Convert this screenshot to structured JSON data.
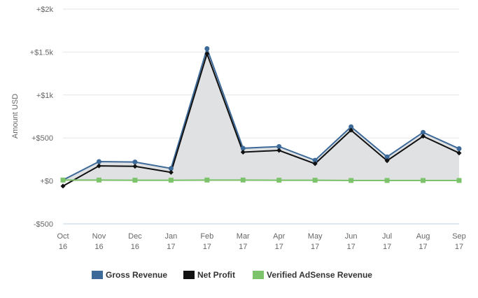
{
  "chart_data": {
    "type": "line",
    "ylabel": "Amount USD",
    "ylim": [
      -500,
      2000
    ],
    "yticks": [
      {
        "value": 2000,
        "label": "+$2k"
      },
      {
        "value": 1500,
        "label": "+$1.5k"
      },
      {
        "value": 1000,
        "label": "+$1k"
      },
      {
        "value": 500,
        "label": "+$500"
      },
      {
        "value": 0,
        "label": "+$0"
      },
      {
        "value": -500,
        "label": "-$500"
      }
    ],
    "categories": [
      {
        "month": "Oct",
        "year": "16"
      },
      {
        "month": "Nov",
        "year": "16"
      },
      {
        "month": "Dec",
        "year": "16"
      },
      {
        "month": "Jan",
        "year": "17"
      },
      {
        "month": "Feb",
        "year": "17"
      },
      {
        "month": "Mar",
        "year": "17"
      },
      {
        "month": "Apr",
        "year": "17"
      },
      {
        "month": "May",
        "year": "17"
      },
      {
        "month": "Jun",
        "year": "17"
      },
      {
        "month": "Jul",
        "year": "17"
      },
      {
        "month": "Aug",
        "year": "17"
      },
      {
        "month": "Sep",
        "year": "17"
      }
    ],
    "series": [
      {
        "name": "Gross Revenue",
        "color": "#3d6a99",
        "marker": "circle",
        "filled_area": true,
        "values": [
          10,
          225,
          220,
          145,
          1540,
          380,
          400,
          240,
          630,
          280,
          565,
          375
        ]
      },
      {
        "name": "Net Profit",
        "color": "#111111",
        "marker": "diamond",
        "values": [
          -60,
          175,
          170,
          100,
          1480,
          335,
          355,
          200,
          590,
          235,
          520,
          325
        ]
      },
      {
        "name": "Verified AdSense Revenue",
        "color": "#7dc36b",
        "marker": "square",
        "values": [
          10,
          10,
          8,
          8,
          10,
          10,
          8,
          8,
          5,
          5,
          5,
          5
        ]
      }
    ],
    "grid": "horizontal",
    "legend_position": "bottom"
  }
}
